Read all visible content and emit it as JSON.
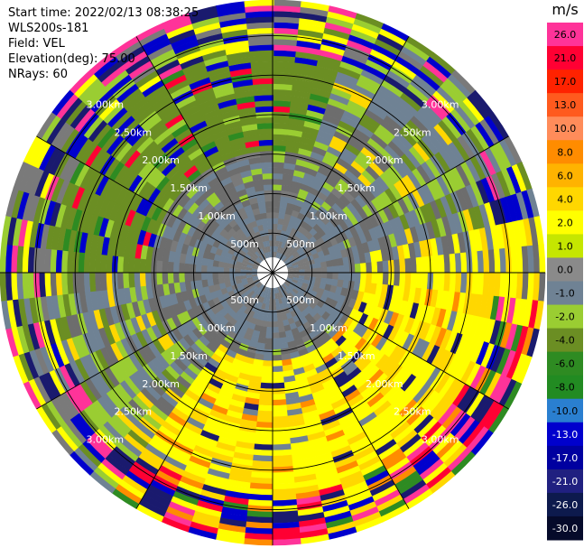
{
  "header": {
    "start_time": "Start time: 2022/02/13 08:38:25",
    "instrument": "WLS200s-181",
    "field": "Field: VEL",
    "elevation": "Elevation(deg): 75.00",
    "nrays": "NRays: 60"
  },
  "chart_data": {
    "type": "heatmap",
    "projection": "polar (PPI scan)",
    "range_ring_labels": [
      "500m",
      "1.00km",
      "1.50km",
      "2.00km",
      "2.50km",
      "3.00km"
    ],
    "range_rings_km": [
      0.5,
      1.0,
      1.5,
      2.0,
      2.5,
      3.0
    ],
    "max_range_km": 3.45,
    "azimuth_lines_deg": [
      0,
      30,
      60,
      90,
      120,
      150,
      180,
      210,
      240,
      270,
      300,
      330
    ],
    "colorbar": {
      "unit": "m/s",
      "ticks": [
        "26.0",
        "21.0",
        "17.0",
        "13.0",
        "10.0",
        "8.0",
        "6.0",
        "4.0",
        "2.0",
        "1.0",
        "0.0",
        "-1.0",
        "-2.0",
        "-4.0",
        "-6.0",
        "-8.0",
        "-10.0",
        "-13.0",
        "-17.0",
        "-21.0",
        "-26.0",
        "-30.0"
      ],
      "colors": [
        "#ff3399",
        "#ff0033",
        "#ff2200",
        "#ff5a1e",
        "#ff8c5a",
        "#ff8c00",
        "#ffb300",
        "#ffd700",
        "#ffff00",
        "#c5e600",
        "#8a8a8a",
        "#6f8294",
        "#9acd32",
        "#6b8e23",
        "#2e8b22",
        "#228b22",
        "#2a7fd0",
        "#0000cd",
        "#0000a0",
        "#202080",
        "#0d1a4d",
        "#050a2a"
      ]
    },
    "field": "VEL",
    "elevation_deg": 75.0,
    "nrays": 60
  }
}
